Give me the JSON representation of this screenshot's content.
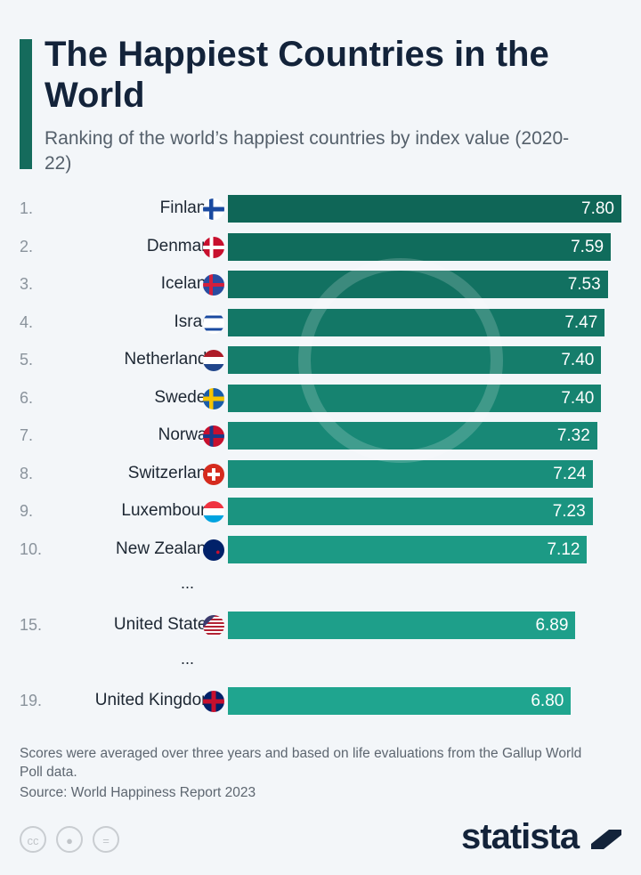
{
  "title": "The Happiest Countries in the World",
  "subtitle": "Ranking of the world’s happiest countries by index value (2020-22)",
  "chart_data": {
    "type": "bar",
    "orientation": "horizontal",
    "title": "The Happiest Countries in the World",
    "subtitle": "Ranking of the world’s happiest countries by index value (2020-22)",
    "ranks": [
      "1.",
      "2.",
      "3.",
      "4.",
      "5.",
      "6.",
      "7.",
      "8.",
      "9.",
      "10.",
      "15.",
      "19."
    ],
    "categories": [
      "Finland",
      "Denmark",
      "Iceland",
      "Israel",
      "Netherlands",
      "Sweden",
      "Norway",
      "Switzerland",
      "Luxembourg",
      "New Zealand",
      "United States",
      "United Kingdom"
    ],
    "values": [
      7.8,
      7.59,
      7.53,
      7.47,
      7.4,
      7.4,
      7.32,
      7.24,
      7.23,
      7.12,
      6.89,
      6.8
    ],
    "value_labels": [
      "7.80",
      "7.59",
      "7.53",
      "7.47",
      "7.40",
      "7.40",
      "7.32",
      "7.24",
      "7.23",
      "7.12",
      "6.89",
      "6.80"
    ],
    "flags": [
      "finland-flag",
      "denmark-flag",
      "iceland-flag",
      "israel-flag",
      "netherlands-flag",
      "sweden-flag",
      "norway-flag",
      "switzerland-flag",
      "luxembourg-flag",
      "new-zealand-flag",
      "united-states-flag",
      "united-kingdom-flag"
    ],
    "gap_marker": "...",
    "grid": false,
    "legend": "none",
    "bar_color_top": "#0f6657",
    "bar_color_bottom": "#1fa58f"
  },
  "footer": {
    "note": "Scores were averaged over three years and based on life evaluations from the Gallup World Poll data.",
    "source": "Source: World Happiness Report 2023",
    "cc_icons": [
      "cc-icon",
      "by-icon",
      "nd-icon"
    ],
    "brand": "statista"
  }
}
